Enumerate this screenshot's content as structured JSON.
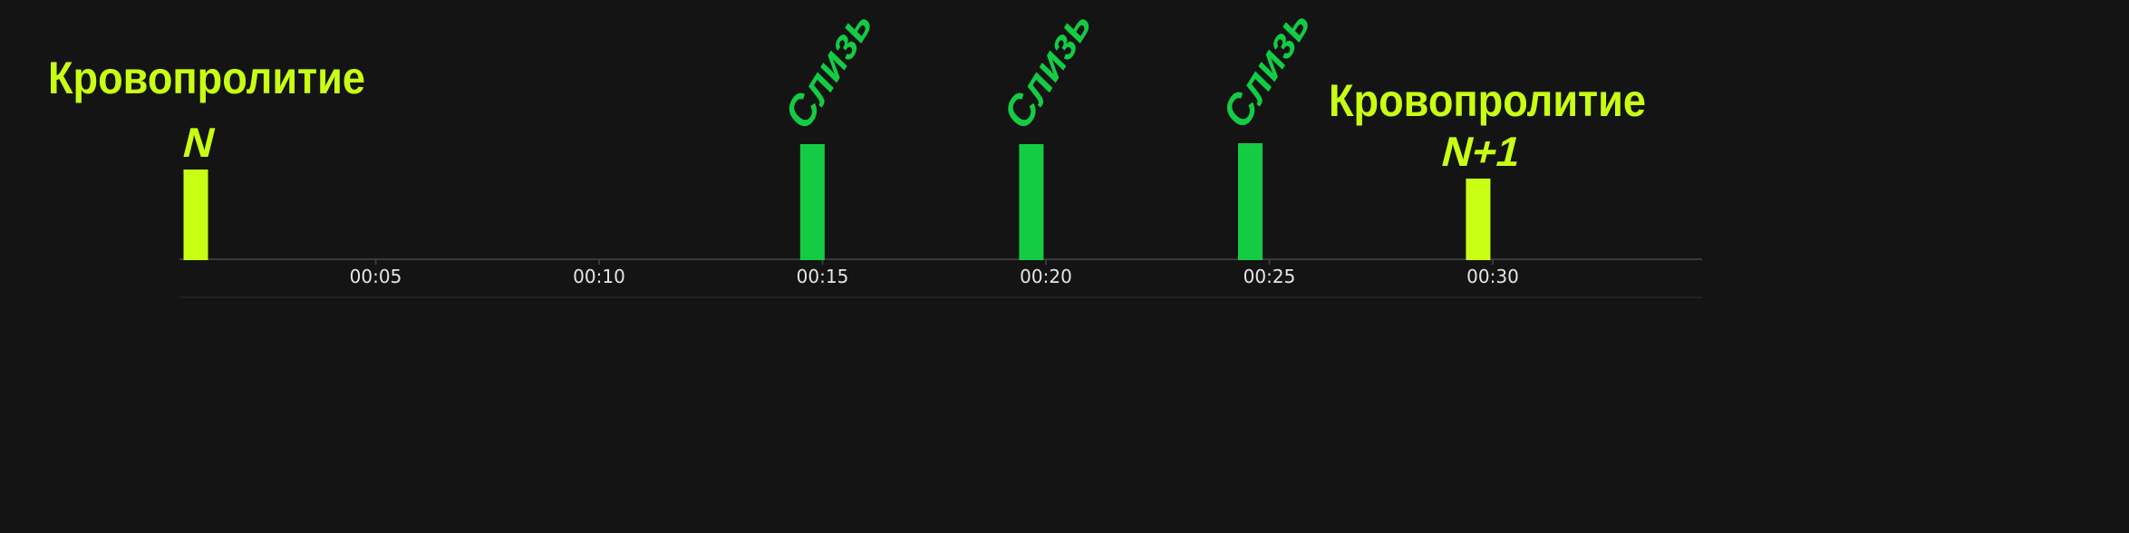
{
  "chart_data": {
    "type": "bar",
    "x_unit": "seconds",
    "xlim": [
      0,
      35
    ],
    "x_tick_labels": [
      "00:05",
      "00:10",
      "00:15",
      "00:20",
      "00:25",
      "00:30"
    ],
    "x_ticks": [
      5,
      10,
      15,
      20,
      25,
      30
    ],
    "grid": false,
    "legend": "none",
    "bars": [
      {
        "x": 0.7,
        "value": 1.0,
        "label": "N",
        "annotation": "Кровопролитие",
        "color": "#c8ff14"
      },
      {
        "x": 14.5,
        "value": 1.28,
        "label": "Слизь",
        "annotation": "",
        "color": "#14cc44"
      },
      {
        "x": 19.4,
        "value": 1.28,
        "label": "Слизь",
        "annotation": "",
        "color": "#14cc44"
      },
      {
        "x": 24.3,
        "value": 1.29,
        "label": "Слизь",
        "annotation": "",
        "color": "#14cc44"
      },
      {
        "x": 29.4,
        "value": 0.9,
        "label": "N+1",
        "annotation": "Кровопролитие",
        "color": "#c8ff14"
      }
    ],
    "colors": {
      "background": "#141414",
      "axis": "#3a3a3a",
      "tick_text": "#e6e6e6"
    }
  }
}
